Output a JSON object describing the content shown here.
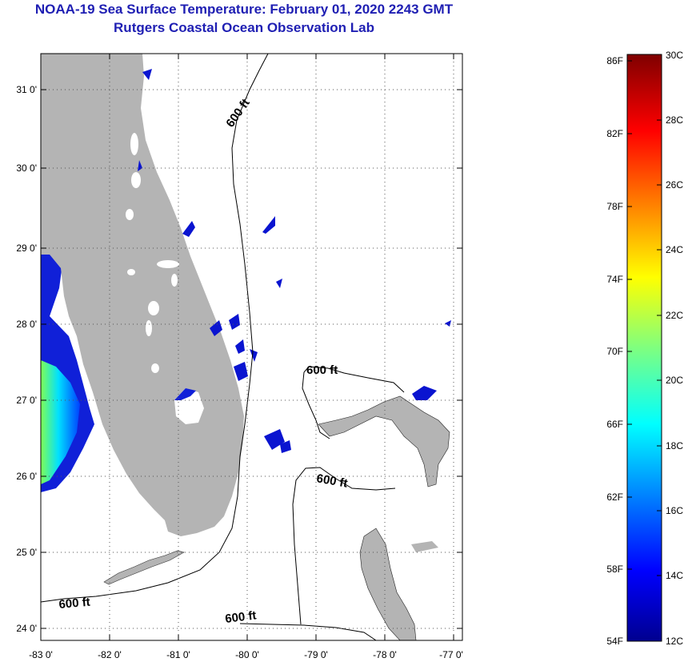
{
  "title": "NOAA-19 Sea Surface Temperature:  February 01, 2020 2243 GMT",
  "subtitle": "Rutgers Coastal Ocean Observation Lab",
  "colors": {
    "title": "#1f1fb3",
    "land": "#b4b4b4",
    "ocean": "#ffffff",
    "grid": "#555555"
  },
  "map": {
    "lon_range": [
      -83,
      -76.85
    ],
    "lat_range": [
      23.85,
      31.45
    ],
    "lon_ticks": [
      "-83 0'",
      "-82 0'",
      "-81 0'",
      "-80 0'",
      "-79 0'",
      "-78 0'",
      "-77 0'"
    ],
    "lat_ticks": [
      "24 0'",
      "25 0'",
      "26 0'",
      "27 0'",
      "28 0'",
      "29 0'",
      "30 0'",
      "31 0'"
    ],
    "contour_labels": [
      "600 ft",
      "600 ft",
      "600 ft",
      "600 ft",
      "600 ft"
    ]
  },
  "colorbar": {
    "f_ticks": [
      "86F",
      "82F",
      "78F",
      "74F",
      "70F",
      "66F",
      "62F",
      "58F",
      "54F"
    ],
    "c_ticks": [
      "30C",
      "28C",
      "26C",
      "24C",
      "22C",
      "20C",
      "18C",
      "16C",
      "14C",
      "12C"
    ]
  },
  "chart_data": {
    "type": "heatmap",
    "title": "NOAA-19 Sea Surface Temperature:  February 01, 2020 2243 GMT",
    "subtitle": "Rutgers Coastal Ocean Observation Lab",
    "x_ticks": [
      -83,
      -82,
      -81,
      -80,
      -79,
      -78,
      -77
    ],
    "y_ticks": [
      24,
      25,
      26,
      27,
      28,
      29,
      30,
      31
    ],
    "xlim": [
      -83,
      -76.85
    ],
    "ylim": [
      23.85,
      31.45
    ],
    "color_scale_c": [
      12,
      30
    ],
    "color_scale_f": [
      54,
      86
    ],
    "contour_depth_label": "600 ft",
    "grid": true
  }
}
